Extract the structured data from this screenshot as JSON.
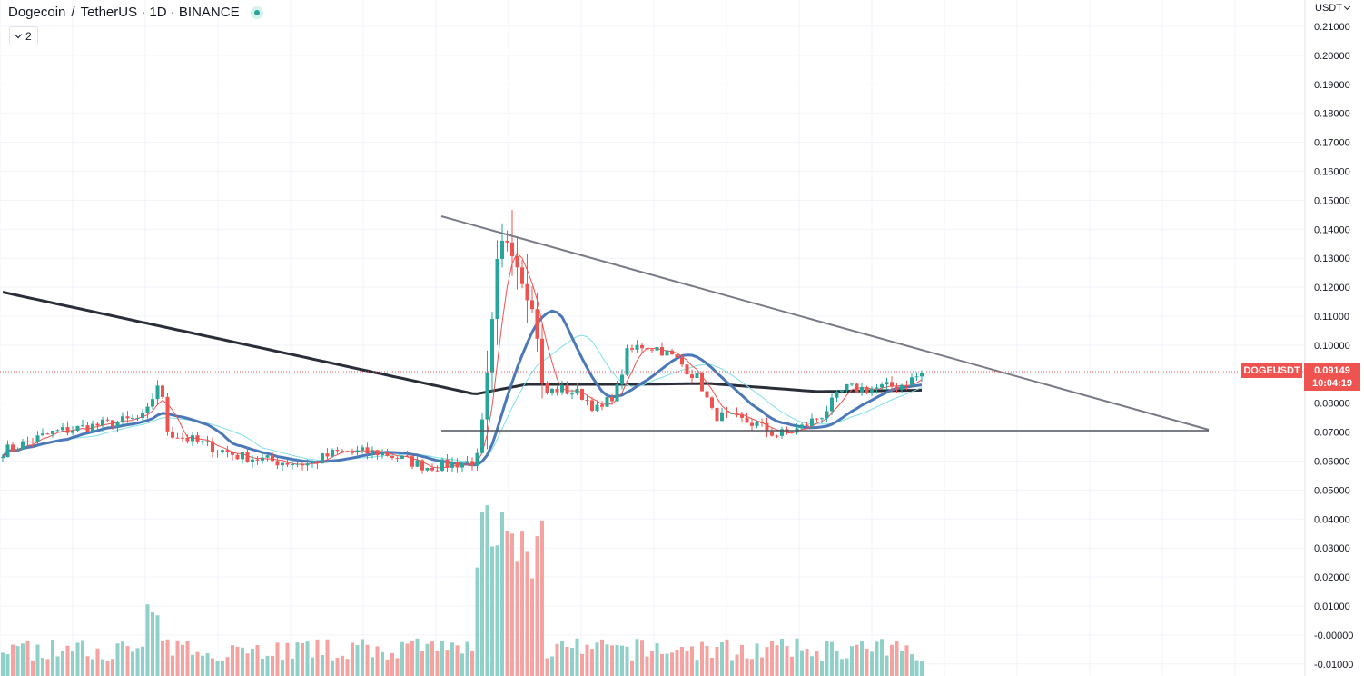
{
  "header": {
    "symbol_name": "Dogecoin",
    "separator": "/",
    "quote_name": "TetherUS · 1D · BINANCE",
    "collapse_count": "2"
  },
  "price_axis": {
    "currency": "USDT",
    "ticks": [
      "0.21000",
      "0.20000",
      "0.19000",
      "0.18000",
      "0.17000",
      "0.16000",
      "0.15000",
      "0.14000",
      "0.13000",
      "0.12000",
      "0.11000",
      "0.10000",
      "0.09000",
      "0.08000",
      "0.07000",
      "0.06000",
      "0.05000",
      "0.04000",
      "0.03000",
      "0.02000",
      "0.01000",
      "-0.00000",
      "-0.01000"
    ]
  },
  "last_price": {
    "symbol": "DOGEUSDT",
    "price": "0.09149",
    "countdown": "10:04:19"
  },
  "colors": {
    "up": "#26a69a",
    "down": "#ef5350",
    "vol_up": "#8fd1c9",
    "vol_down": "#f4a3a1",
    "ma200": "#2a2e39",
    "ma50": "#4a78b8",
    "ma20": "#7fe0e6",
    "ma10": "#ef5350",
    "trendline": "#787b86"
  },
  "drawings": {
    "upper_trendline": [
      [
        0.145,
        0.0708
      ]
    ],
    "support_level": 0.0709
  }
}
